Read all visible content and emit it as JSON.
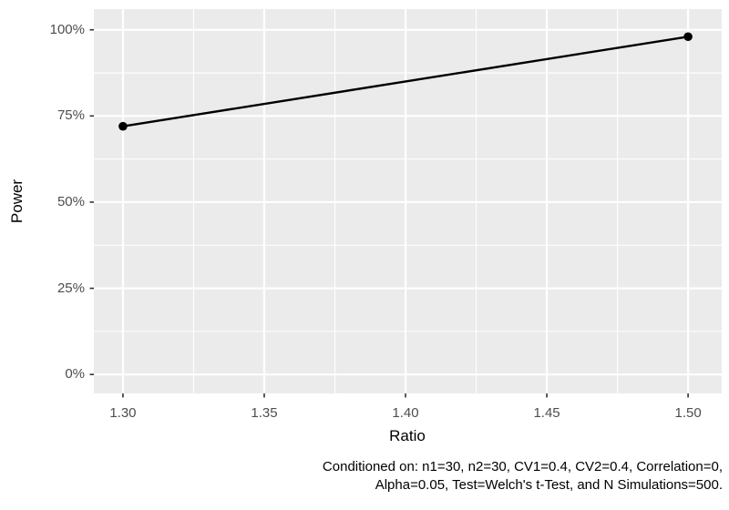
{
  "chart_data": {
    "type": "line",
    "title": "",
    "xlabel": "Ratio",
    "ylabel": "Power",
    "series": [
      {
        "name": "Power",
        "x": [
          1.3,
          1.5
        ],
        "y": [
          72,
          98
        ],
        "color": "#000000"
      }
    ],
    "x_ticks": {
      "values": [
        1.3,
        1.35,
        1.4,
        1.45,
        1.5
      ],
      "labels": [
        "1.30",
        "1.35",
        "1.40",
        "1.45",
        "1.50"
      ]
    },
    "y_ticks": {
      "values": [
        0,
        25,
        50,
        75,
        100
      ],
      "labels": [
        "0%",
        "25%",
        "50%",
        "75%",
        "100%"
      ]
    },
    "x_minor_ticks": [
      1.325,
      1.375,
      1.425,
      1.475
    ],
    "y_minor_ticks": [
      12.5,
      37.5,
      62.5,
      87.5
    ],
    "xlim": [
      1.2897,
      1.5119
    ],
    "ylim": [
      -5.5,
      106
    ],
    "grid": true,
    "legend": "none",
    "point_radius": 4.8,
    "line_width": 2.4,
    "colors": {
      "background": "#FFFFFF",
      "panel_bg": "#EBEBEB",
      "grid_major": "#FFFFFF",
      "grid_minor": "#FFFFFF",
      "line": "#000000",
      "point": "#000000",
      "tick_label": "#4D4D4D",
      "tick_mark": "#333333",
      "axis_title": "#000000",
      "caption": "#000000"
    }
  },
  "caption": {
    "line1": "Conditioned on: n1=30, n2=30, CV1=0.4, CV2=0.4, Correlation=0,",
    "line2": "Alpha=0.05, Test=Welch's t-Test, and N Simulations=500."
  }
}
